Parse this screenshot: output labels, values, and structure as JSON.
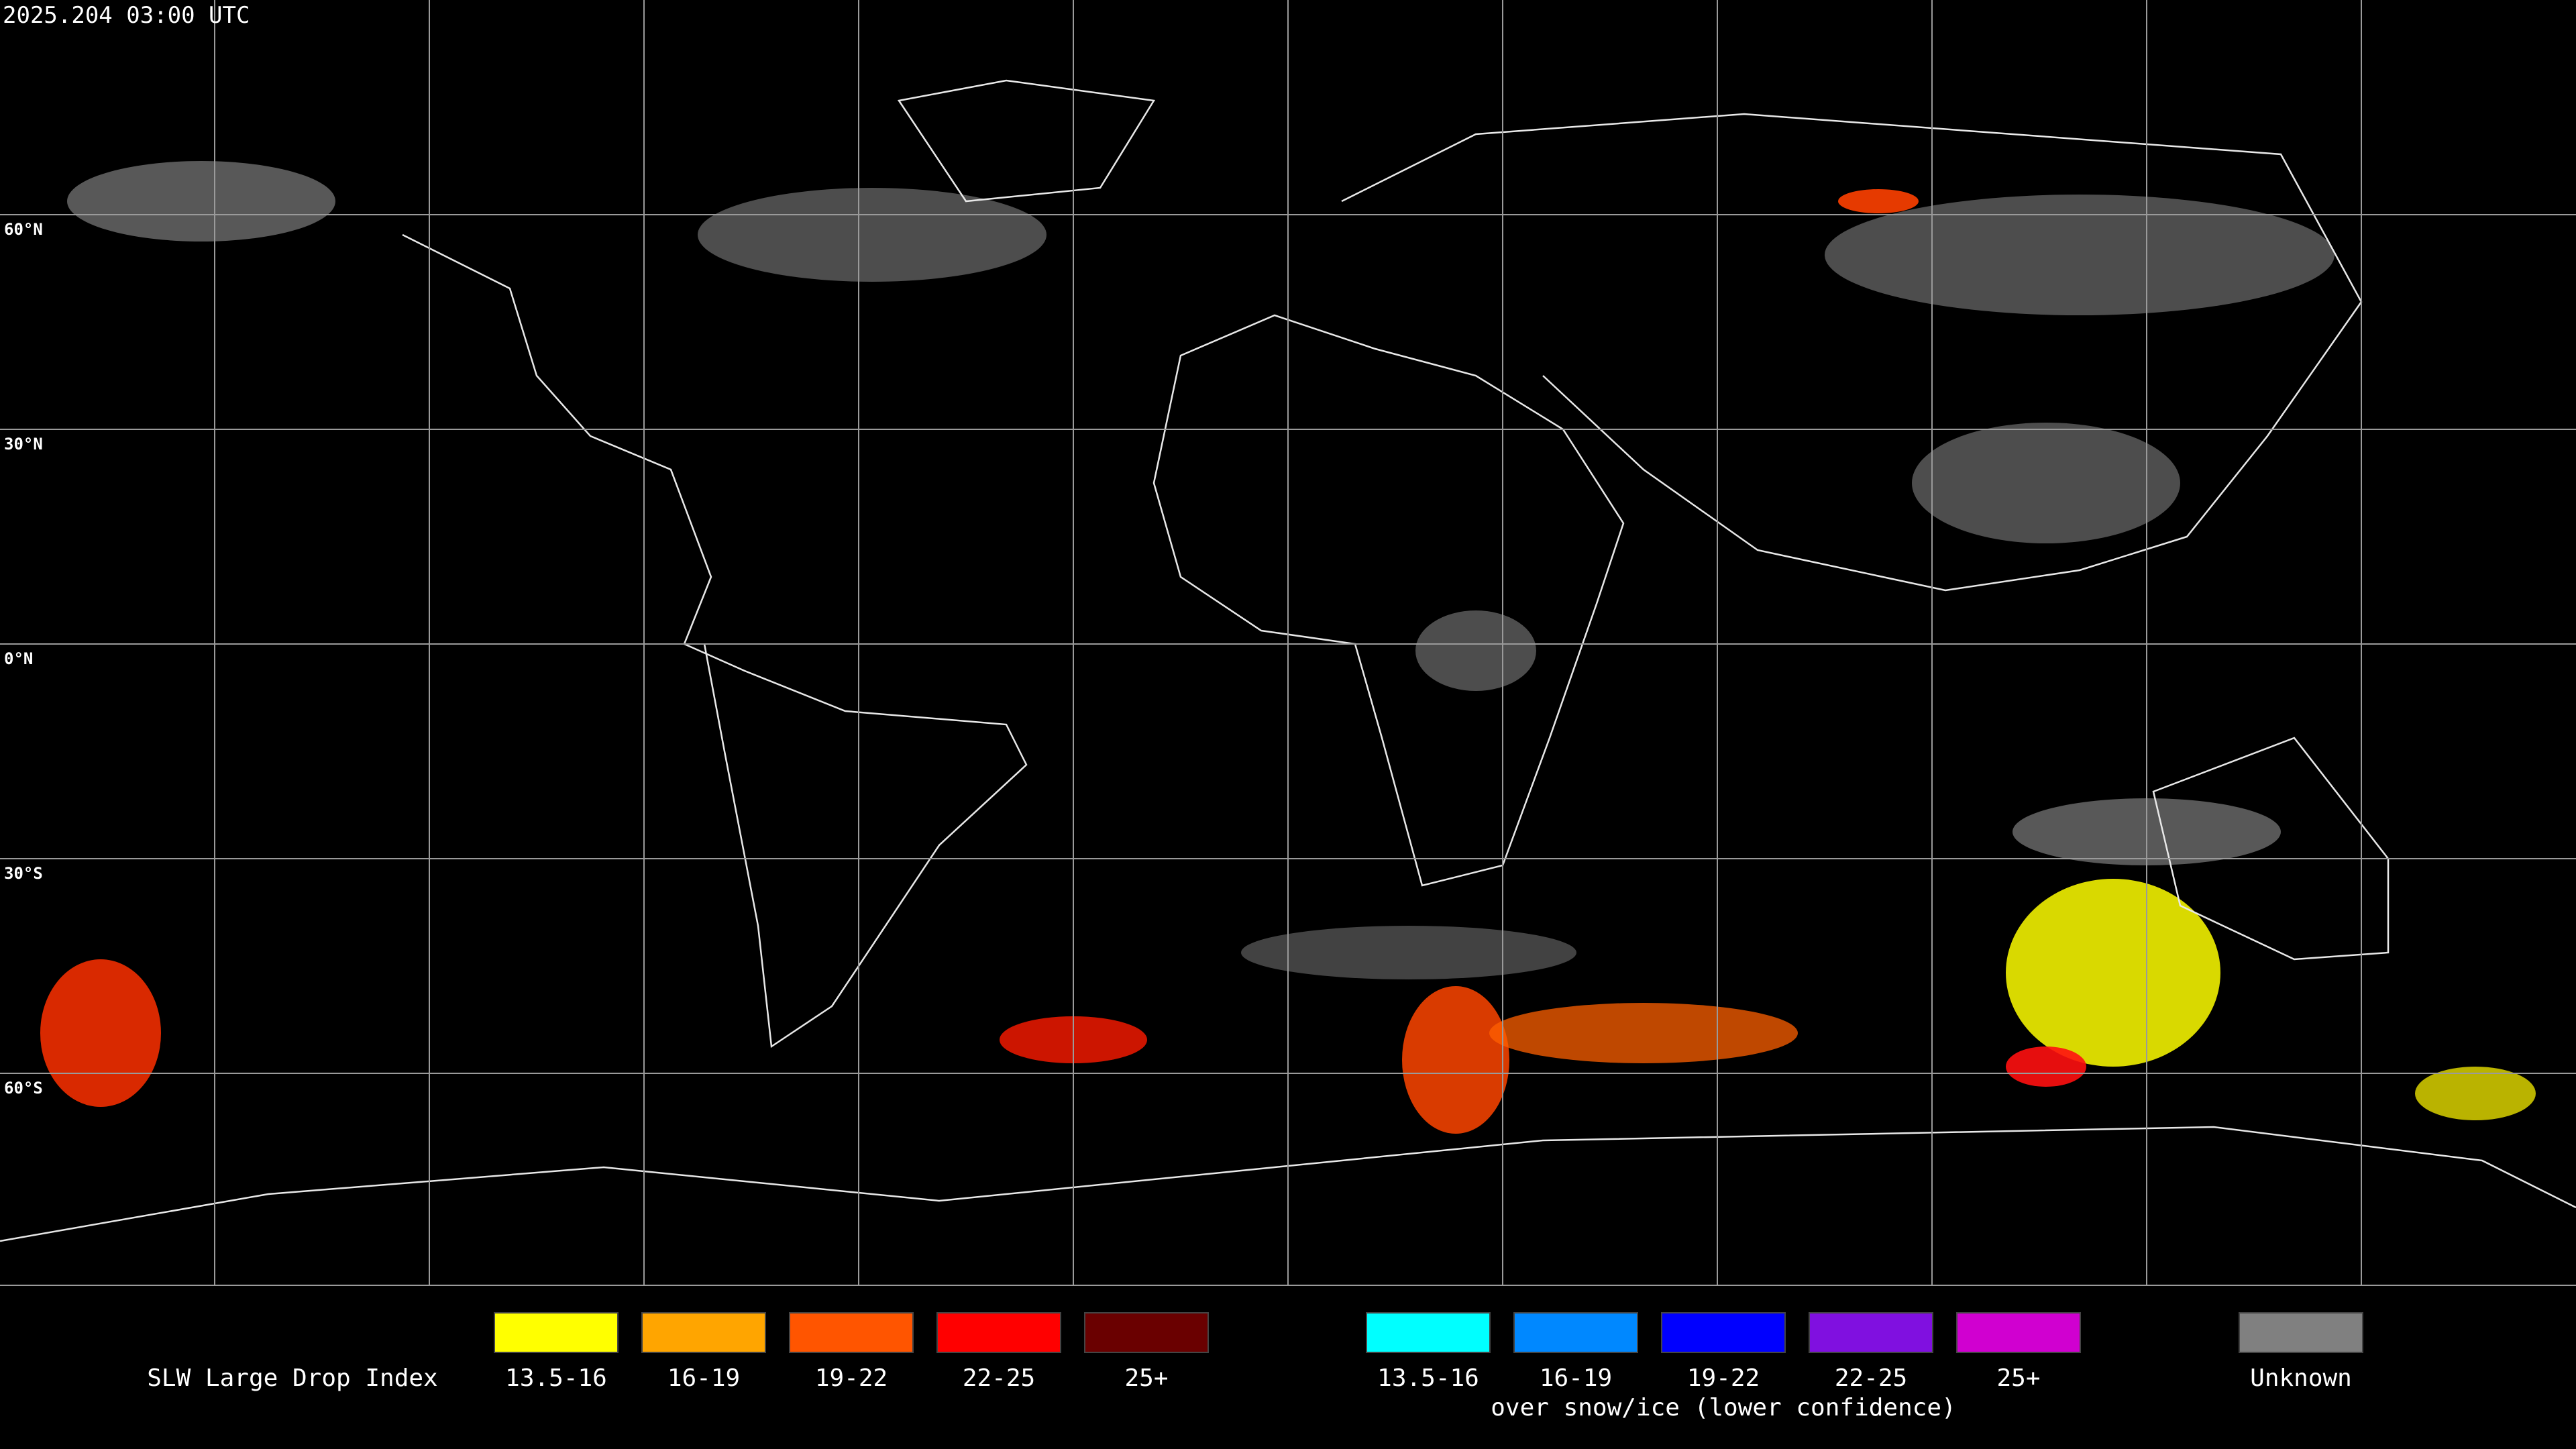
{
  "header": {
    "timestamp": "2025.204 03:00 UTC"
  },
  "grid": {
    "lat_labels": [
      "60°N",
      "30°N",
      "0°N",
      "30°S",
      "60°S"
    ]
  },
  "legend": {
    "title": "SLW Large Drop Index",
    "items": [
      {
        "label": "13.5-16",
        "color": "#ffff00"
      },
      {
        "label": "16-19",
        "color": "#ffa500"
      },
      {
        "label": "19-22",
        "color": "#ff5500"
      },
      {
        "label": "22-25",
        "color": "#ff0000"
      },
      {
        "label": "25+",
        "color": "#6a0000"
      }
    ],
    "snow_items": [
      {
        "label": "13.5-16",
        "color": "#00ffff"
      },
      {
        "label": "16-19",
        "color": "#0088ff"
      },
      {
        "label": "19-22",
        "color": "#0000ff"
      },
      {
        "label": "22-25",
        "color": "#8010e0"
      },
      {
        "label": "25+",
        "color": "#d000d0"
      }
    ],
    "snow_caption": "over snow/ice (lower confidence)",
    "unknown": {
      "label": "Unknown",
      "color": "#808080"
    }
  }
}
